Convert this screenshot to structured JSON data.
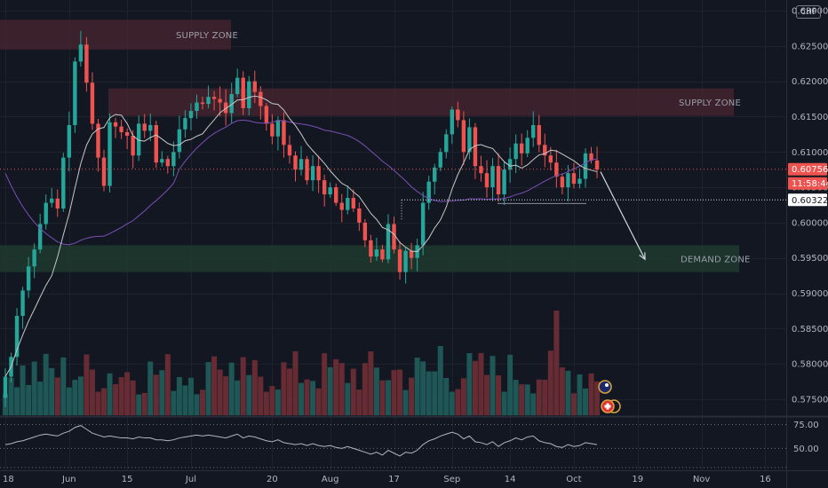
{
  "currency": "CHF",
  "zones": {
    "supply_top": "SUPPLY ZONE",
    "supply_right": "SUPPLY ZONE",
    "demand": "DEMAND ZONE"
  },
  "price_tags": {
    "last_price": "0.60756",
    "countdown": "11:58:44",
    "level": "0.60322"
  },
  "colors": {
    "background": "#131722",
    "up": "#26a69a",
    "down": "#ef5350",
    "supply_zone": "#4a2530",
    "demand_zone": "#1f3a2e",
    "fast_ma": "#c8c8c8",
    "slow_ma": "#7b4fb5",
    "rsi_line": "#b2b5be"
  },
  "chart_data": [
    {
      "type": "candlestick",
      "x_ticks": [
        "18",
        "Jun",
        "15",
        "Jul",
        "20",
        "Aug",
        "17",
        "Sep",
        "14",
        "Oct",
        "19",
        "Nov",
        "16"
      ],
      "y_ticks": [
        "0.57500",
        "0.58000",
        "0.58500",
        "0.59000",
        "0.59500",
        "0.60000",
        "0.60500",
        "0.61000",
        "0.61500",
        "0.62000",
        "0.62500",
        "0.63000"
      ],
      "ylim": [
        0.5728,
        0.6318
      ],
      "zones": [
        {
          "label": "SUPPLY ZONE",
          "from": 0.6245,
          "to": 0.6287
        },
        {
          "label": "SUPPLY ZONE",
          "from": 0.6151,
          "to": 0.619
        },
        {
          "label": "DEMAND ZONE",
          "from": 0.593,
          "to": 0.5968
        }
      ],
      "last_price": 0.60756,
      "horizontal_level": 0.60322,
      "close": [
        0.5782,
        0.581,
        0.5868,
        0.5904,
        0.5938,
        0.5962,
        0.5998,
        0.6028,
        0.6034,
        0.602,
        0.6092,
        0.6138,
        0.6228,
        0.6252,
        0.6198,
        0.614,
        0.6092,
        0.6052,
        0.6142,
        0.6136,
        0.6128,
        0.6123,
        0.6095,
        0.614,
        0.613,
        0.6138,
        0.6085,
        0.609,
        0.608,
        0.61,
        0.6132,
        0.6148,
        0.6158,
        0.617,
        0.6168,
        0.6178,
        0.6175,
        0.617,
        0.6155,
        0.6182,
        0.6205,
        0.6162,
        0.62,
        0.6185,
        0.6165,
        0.614,
        0.6122,
        0.6145,
        0.611,
        0.6095,
        0.6075,
        0.609,
        0.606,
        0.608,
        0.606,
        0.604,
        0.605,
        0.6028,
        0.6018,
        0.6035,
        0.602,
        0.6,
        0.5975,
        0.5952,
        0.5962,
        0.5948,
        0.5998,
        0.5962,
        0.593,
        0.596,
        0.595,
        0.5968,
        0.6028,
        0.6058,
        0.6078,
        0.61,
        0.6125,
        0.616,
        0.6145,
        0.61,
        0.6135,
        0.608,
        0.607,
        0.605,
        0.608,
        0.604,
        0.6075,
        0.609,
        0.6112,
        0.6098,
        0.612,
        0.6138,
        0.611,
        0.6095,
        0.6085,
        0.6065,
        0.605,
        0.607,
        0.6055,
        0.6062,
        0.6098,
        0.6088,
        0.6075
      ],
      "fast_ma_last": 0.6071,
      "slow_ma_last": 0.6068,
      "volume_axis": "shared",
      "arrow": {
        "from_price": 0.6072,
        "to_price": 0.5948
      }
    },
    {
      "type": "line",
      "name": "",
      "y_ticks": [
        "75.00",
        "50.00"
      ],
      "ylim": [
        28,
        82
      ],
      "values": [
        54,
        55,
        57,
        58,
        60,
        62,
        64,
        65,
        64,
        63,
        66,
        68,
        72,
        74,
        70,
        66,
        64,
        62,
        63,
        62,
        61,
        61,
        60,
        62,
        61,
        61,
        59,
        59,
        58,
        59,
        61,
        62,
        63,
        64,
        63,
        64,
        63,
        62,
        61,
        63,
        65,
        61,
        63,
        62,
        60,
        58,
        57,
        59,
        56,
        55,
        54,
        55,
        53,
        55,
        53,
        52,
        53,
        51,
        50,
        52,
        50,
        48,
        46,
        44,
        46,
        43,
        48,
        45,
        42,
        46,
        45,
        48,
        54,
        58,
        60,
        63,
        65,
        67,
        65,
        60,
        63,
        57,
        56,
        54,
        57,
        52,
        56,
        58,
        61,
        59,
        62,
        63,
        58,
        56,
        55,
        52,
        51,
        54,
        52,
        53,
        56,
        55,
        54
      ]
    }
  ]
}
